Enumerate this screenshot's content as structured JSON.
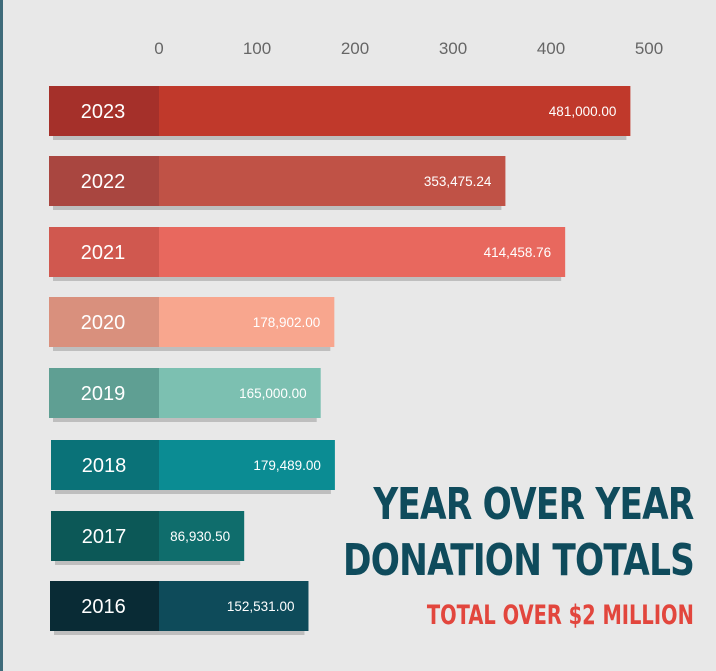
{
  "chart_data": {
    "type": "bar",
    "orientation": "horizontal",
    "title": "YEAR OVER YEAR DONATION TOTALS",
    "title_lines": [
      "YEAR OVER YEAR",
      "DONATION TOTALS"
    ],
    "subtitle": "TOTAL OVER $2 MILLION",
    "xlim": [
      0,
      500
    ],
    "ticks": [
      "0",
      "100",
      "200",
      "300",
      "400",
      "500"
    ],
    "tick_values": [
      0,
      100,
      200,
      300,
      400,
      500
    ],
    "grid": false,
    "legend": "none",
    "categories": [
      "2023",
      "2022",
      "2021",
      "2020",
      "2019",
      "2018",
      "2017",
      "2016"
    ],
    "values": [
      481000.0,
      353475.24,
      414458.76,
      178902.0,
      165000.0,
      179489.0,
      86930.5,
      152531.0
    ],
    "value_labels": [
      "481,000.00",
      "353,475.24",
      "414,458.76",
      "178,902.00",
      "165,000.00",
      "179,489.00",
      "86,930.50",
      "152,531.00"
    ],
    "value_scale": 1000,
    "colors": [
      "#c0392b",
      "#c05246",
      "#e8685e",
      "#f8a68e",
      "#7cc0b1",
      "#0b8c93",
      "#0f6d6c",
      "#0e4b5a"
    ],
    "year_colors": [
      "#a5302a",
      "#a94640",
      "#d0584f",
      "#d9907d",
      "#5f9f93",
      "#0a7278",
      "#0c5857",
      "#092b35"
    ]
  }
}
